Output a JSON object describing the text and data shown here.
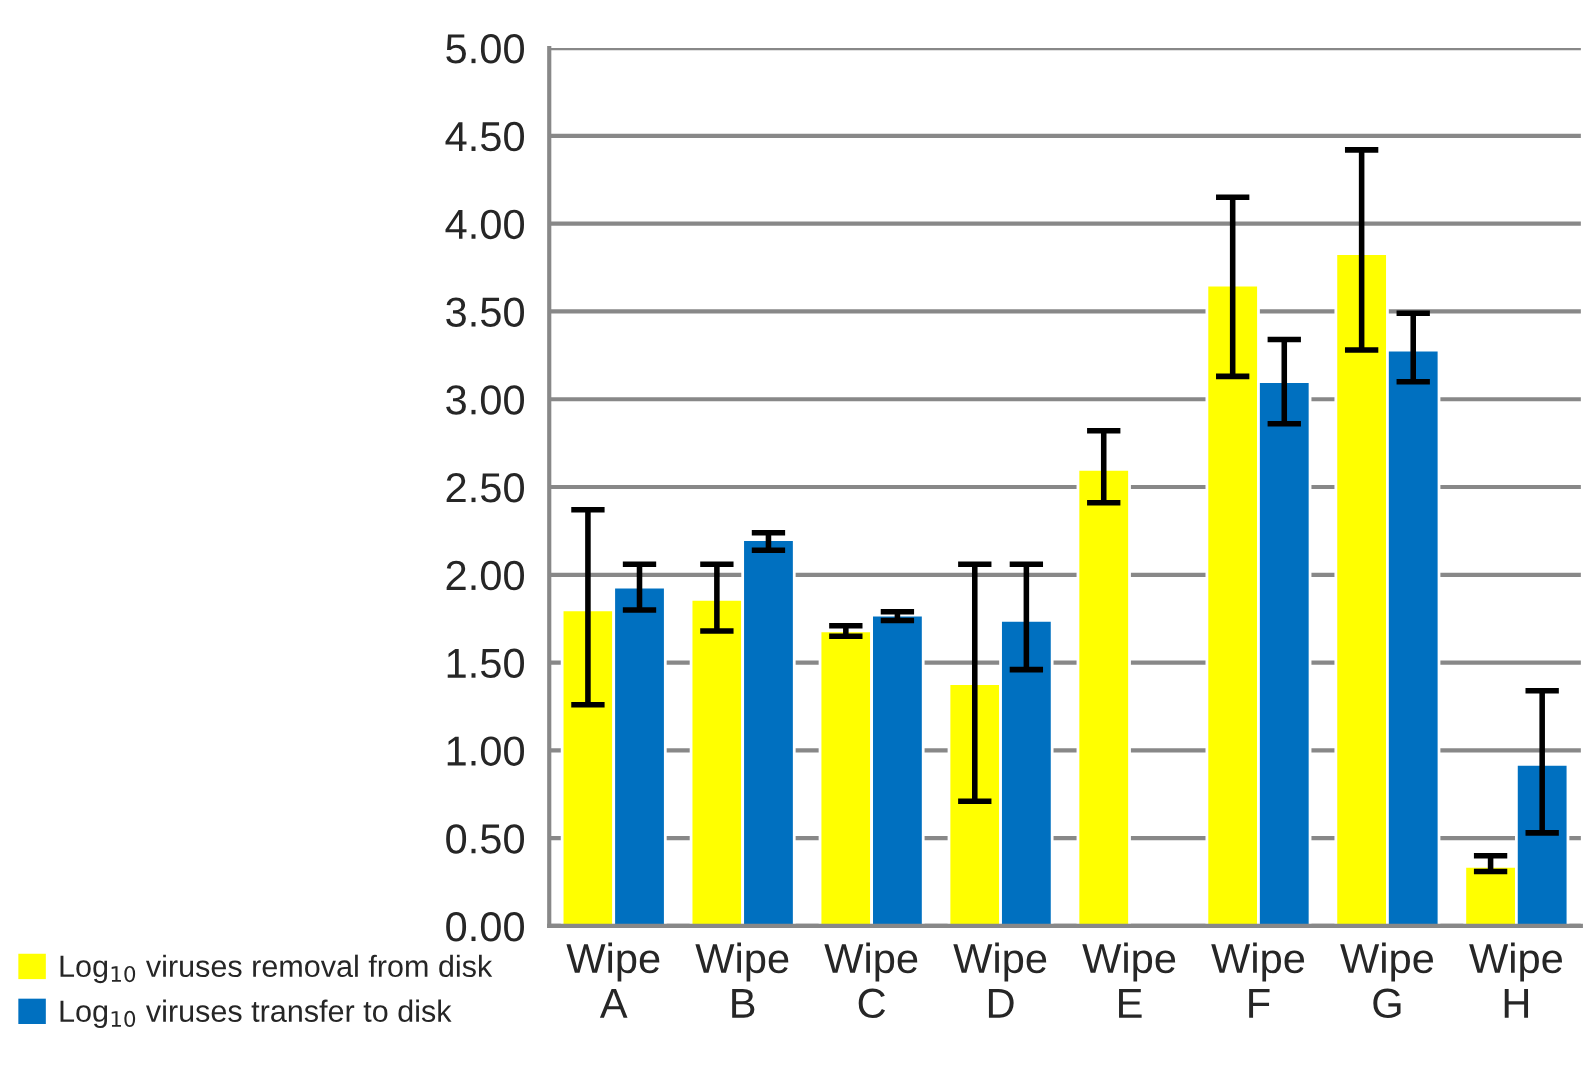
{
  "chart_data": {
    "type": "bar",
    "categories": [
      "Wipe\nA",
      "Wipe\nB",
      "Wipe\nC",
      "Wipe\nD",
      "Wipe\nE",
      "Wipe\nF",
      "Wipe\nG",
      "Wipe\nH"
    ],
    "series": [
      {
        "name": "Log$_{10}$ viruses removal from disk",
        "color": "#ffff00",
        "values": [
          1.8,
          1.86,
          1.68,
          1.38,
          2.6,
          3.65,
          3.83,
          0.34
        ],
        "errors": [
          [
            1.26,
            2.37
          ],
          [
            1.68,
            2.06
          ],
          [
            1.65,
            1.71
          ],
          [
            0.71,
            2.06
          ],
          [
            2.41,
            2.82
          ],
          [
            3.13,
            4.15
          ],
          [
            3.28,
            4.42
          ],
          [
            0.31,
            0.4
          ]
        ]
      },
      {
        "name": "Log$_{10}$ viruses transfer to disk",
        "color": "#0070c0",
        "values": [
          1.93,
          2.2,
          1.77,
          1.74,
          null,
          3.1,
          3.28,
          0.92
        ],
        "errors": [
          [
            1.8,
            2.06
          ],
          [
            2.14,
            2.24
          ],
          [
            1.74,
            1.79
          ],
          [
            1.46,
            2.06
          ],
          null,
          [
            2.86,
            3.34
          ],
          [
            3.1,
            3.49
          ],
          [
            0.53,
            1.34
          ]
        ]
      }
    ],
    "ylim": [
      0,
      5
    ],
    "yticks": [
      {
        "value": 0,
        "label": "0.00"
      },
      {
        "value": 0.5,
        "label": "0.50"
      },
      {
        "value": 1,
        "label": "1.00"
      },
      {
        "value": 1.5,
        "label": "1.50"
      },
      {
        "value": 2,
        "label": "2.00"
      },
      {
        "value": 2.5,
        "label": "2.50"
      },
      {
        "value": 3,
        "label": "3.00"
      },
      {
        "value": 3.5,
        "label": "3.50"
      },
      {
        "value": 4,
        "label": "4.00"
      },
      {
        "value": 4.5,
        "label": "4.50"
      },
      {
        "value": 5,
        "label": "5.00"
      }
    ],
    "grid": "y",
    "legend": "left"
  }
}
